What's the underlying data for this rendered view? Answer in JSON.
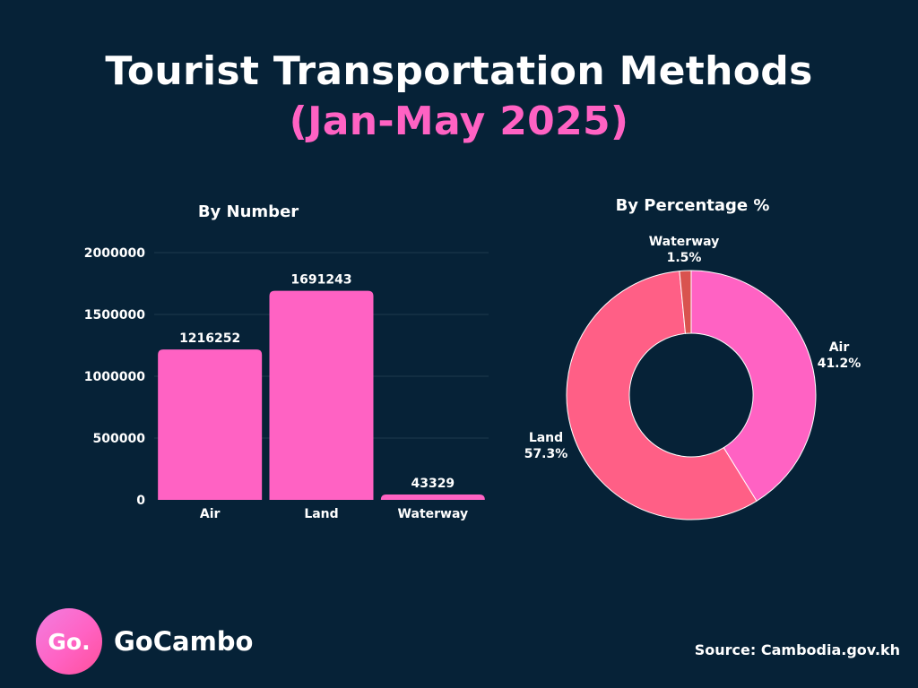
{
  "header": {
    "title_line1": "Tourist Transportation Methods",
    "title_line2": "(Jan-May 2025)"
  },
  "colors": {
    "background": "#062237",
    "bar": "#ff62c3",
    "grid": "#1f3a4d",
    "air_slice": "#ff62c3",
    "land_slice": "#ff5f86",
    "waterway_slice": "#d9534f"
  },
  "chart_data": [
    {
      "type": "bar",
      "title": "By Number",
      "categories": [
        "Air",
        "Land",
        "Waterway"
      ],
      "values": [
        1216252,
        1691243,
        43329
      ],
      "data_labels": [
        "1216252",
        "1691243",
        "43329"
      ],
      "y_ticks": [
        0,
        500000,
        1000000,
        1500000,
        2000000
      ],
      "y_tick_labels": [
        "0",
        "500000",
        "1000000",
        "1500000",
        "2000000"
      ],
      "ylim": [
        0,
        2000000
      ],
      "grid": true
    },
    {
      "type": "pie",
      "title": "By Percentage %",
      "donut": true,
      "labels": [
        "Air",
        "Land",
        "Waterway"
      ],
      "values": [
        41.2,
        57.3,
        1.5
      ],
      "value_labels": [
        "41.2%",
        "57.3%",
        "1.5%"
      ]
    }
  ],
  "footer": {
    "logo_text": "Go.",
    "brand": "GoCambo",
    "source": "Source: Cambodia.gov.kh"
  }
}
